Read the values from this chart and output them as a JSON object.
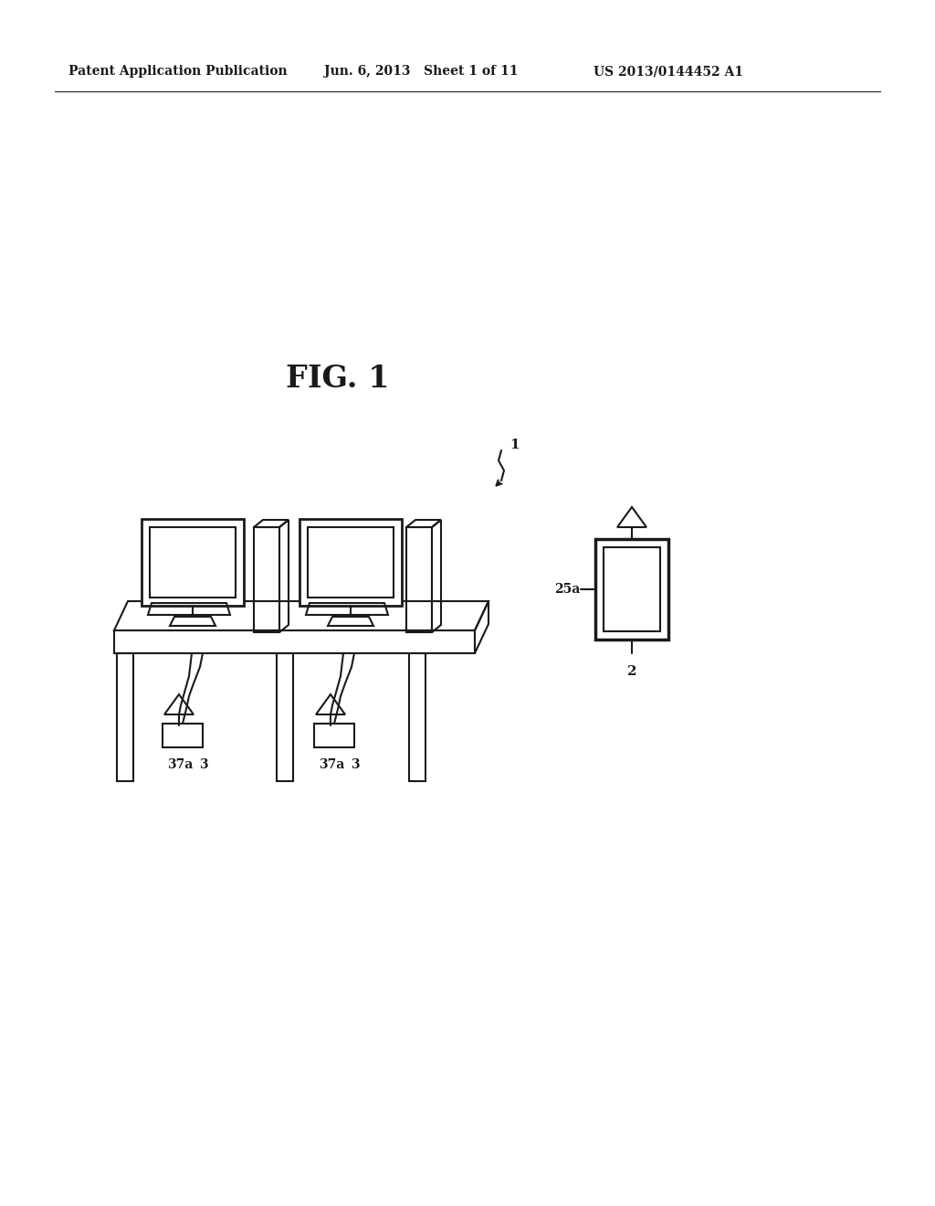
{
  "title": "FIG. 1",
  "header_left": "Patent Application Publication",
  "header_center": "Jun. 6, 2013   Sheet 1 of 11",
  "header_right": "US 2013/0144452 A1",
  "label_1": "1",
  "label_2": "2",
  "label_25a": "25a",
  "label_37a_1": "37a",
  "label_3_1": "3",
  "label_37a_2": "37a",
  "label_3_2": "3",
  "bg_color": "#ffffff",
  "line_color": "#1a1a1a",
  "linewidth": 1.5
}
